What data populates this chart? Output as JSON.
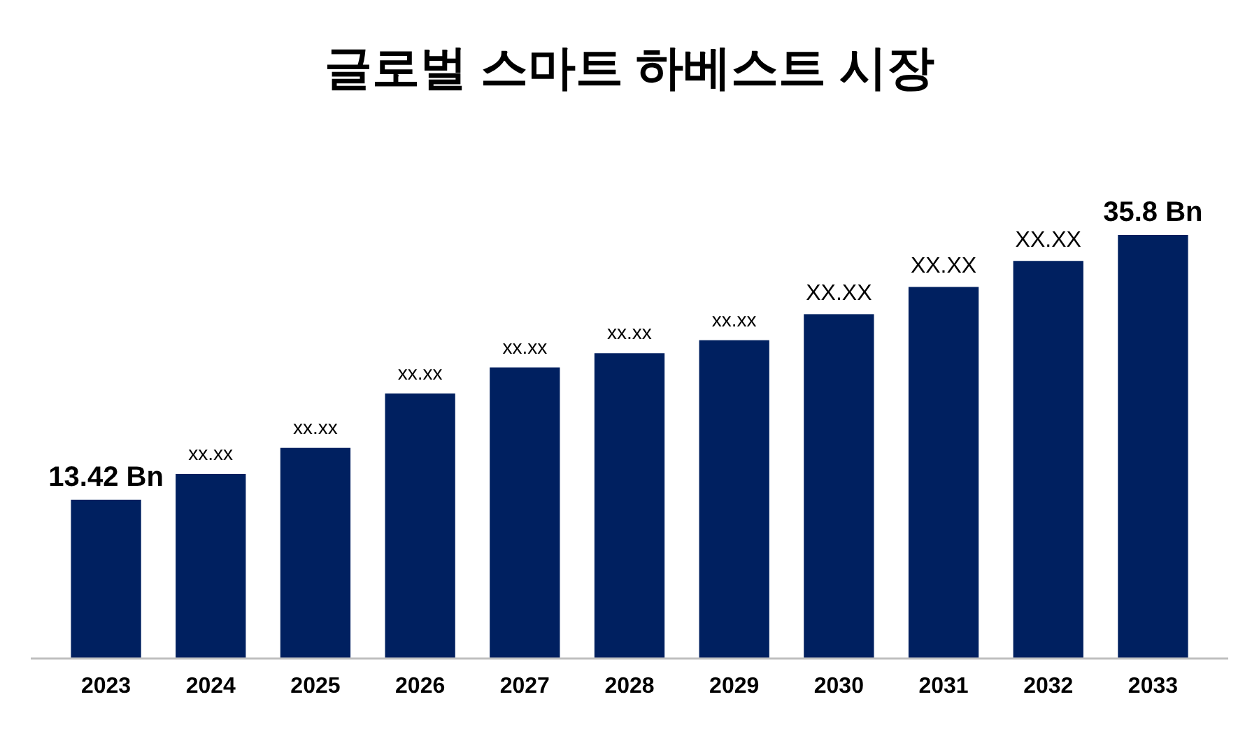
{
  "chart_data": {
    "type": "bar",
    "title": "글로벌 스마트 하베스트 시장",
    "categories": [
      "2023",
      "2024",
      "2025",
      "2026",
      "2027",
      "2028",
      "2029",
      "2030",
      "2031",
      "2032",
      "2033"
    ],
    "values": [
      13.42,
      15.6,
      17.8,
      22.4,
      24.6,
      25.8,
      26.9,
      29.1,
      31.4,
      33.6,
      35.8
    ],
    "value_labels": [
      "13.42 Bn",
      "xx.xx",
      "xx.xx",
      "xx.xx",
      "xx.xx",
      "xx.xx",
      "xx.xx",
      "XX.XX",
      "XX.XX",
      "XX.XX",
      "35.8 Bn"
    ],
    "color": "#002060",
    "tick_labels": "x"
  }
}
